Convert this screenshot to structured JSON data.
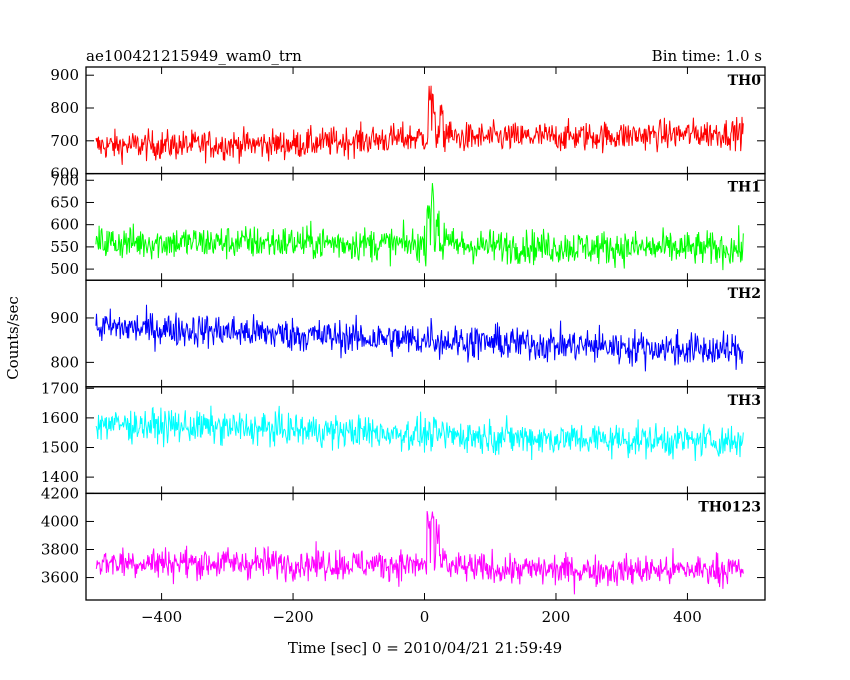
{
  "chart_data": {
    "type": "line",
    "title": "ae100421215949_wam0_trn",
    "subtitle": "Bin time: 1.0 s",
    "xlabel": "Time [sec] 0 = 2010/04/21 21:59:49",
    "ylabel": "Counts/sec",
    "xlim": [
      -515,
      518
    ],
    "x_ticks": [
      -400,
      -200,
      0,
      200,
      400
    ],
    "x_tick_labels": [
      "−400",
      "−200",
      "0",
      "200",
      "400"
    ],
    "x_range": [
      -500,
      485
    ],
    "bin_time_s": 1.0,
    "grid": false,
    "legend": "none",
    "panels": [
      {
        "name": "TH0",
        "color": "#ff0000",
        "ylim": [
          600,
          925
        ],
        "y_ticks": [
          600,
          700,
          800,
          900
        ],
        "y_tick_labels": [
          "600",
          "700",
          "800",
          "900"
        ],
        "baseline": [
          [
            -500,
            685
          ],
          [
            -200,
            690
          ],
          [
            -10,
            710
          ],
          [
            100,
            710
          ],
          [
            300,
            715
          ],
          [
            485,
            725
          ]
        ],
        "noise_amplitude": 45,
        "peaks": [
          [
            8,
            150
          ],
          [
            14,
            120
          ],
          [
            26,
            80
          ],
          [
            36,
            35
          ]
        ],
        "range": [
          605,
          925
        ]
      },
      {
        "name": "TH1",
        "color": "#00ff00",
        "ylim": [
          475,
          715
        ],
        "y_ticks": [
          500,
          550,
          600,
          650,
          700
        ],
        "y_tick_labels": [
          "500",
          "550",
          "600",
          "650",
          "700"
        ],
        "baseline": [
          [
            -500,
            560
          ],
          [
            -200,
            560
          ],
          [
            -10,
            555
          ],
          [
            100,
            552
          ],
          [
            300,
            548
          ],
          [
            485,
            545
          ]
        ],
        "noise_amplitude": 38,
        "peaks": [
          [
            6,
            110
          ],
          [
            12,
            120
          ],
          [
            20,
            70
          ],
          [
            32,
            30
          ]
        ],
        "range": [
          478,
          712
        ]
      },
      {
        "name": "TH2",
        "color": "#0000ff",
        "ylim": [
          745,
          985
        ],
        "y_ticks": [
          800,
          900
        ],
        "y_tick_labels": [
          "800",
          "900"
        ],
        "baseline": [
          [
            -500,
            880
          ],
          [
            -300,
            870
          ],
          [
            -100,
            855
          ],
          [
            0,
            850
          ],
          [
            200,
            840
          ],
          [
            485,
            825
          ]
        ],
        "noise_amplitude": 38,
        "peaks": [
          [
            10,
            25
          ]
        ],
        "range": [
          750,
          980
        ]
      },
      {
        "name": "TH3",
        "color": "#00ffff",
        "ylim": [
          1345,
          1705
        ],
        "y_ticks": [
          1400,
          1500,
          1600,
          1700
        ],
        "y_tick_labels": [
          "1400",
          "1500",
          "1600",
          "1700"
        ],
        "baseline": [
          [
            -500,
            1580
          ],
          [
            -200,
            1560
          ],
          [
            0,
            1545
          ],
          [
            200,
            1530
          ],
          [
            485,
            1520
          ]
        ],
        "noise_amplitude": 55,
        "peaks": [],
        "range": [
          1350,
          1700
        ]
      },
      {
        "name": "TH0123",
        "color": "#ff00ff",
        "ylim": [
          3440,
          4200
        ],
        "y_ticks": [
          3600,
          3800,
          4000,
          4200
        ],
        "y_tick_labels": [
          "3600",
          "3800",
          "4000",
          "4200"
        ],
        "baseline": [
          [
            -500,
            3710
          ],
          [
            -200,
            3700
          ],
          [
            -10,
            3690
          ],
          [
            100,
            3660
          ],
          [
            300,
            3650
          ],
          [
            485,
            3660
          ]
        ],
        "noise_amplitude": 110,
        "peaks": [
          [
            6,
            380
          ],
          [
            12,
            420
          ],
          [
            20,
            260
          ],
          [
            30,
            90
          ]
        ],
        "range": [
          3445,
          4200
        ]
      }
    ]
  }
}
